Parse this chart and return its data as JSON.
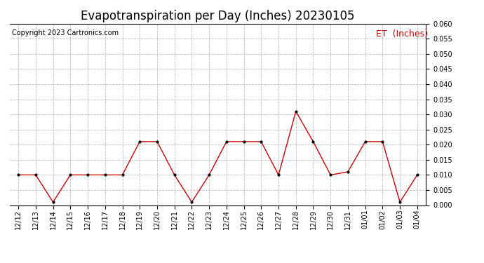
{
  "title": "Evapotranspiration per Day (Inches) 20230105",
  "copyright": "Copyright 2023 Cartronics.com",
  "legend_label": "ET  (Inches)",
  "x_labels": [
    "12/12",
    "12/13",
    "12/14",
    "12/15",
    "12/16",
    "12/17",
    "12/18",
    "12/19",
    "12/20",
    "12/21",
    "12/22",
    "12/23",
    "12/24",
    "12/25",
    "12/26",
    "12/27",
    "12/28",
    "12/29",
    "12/30",
    "12/31",
    "01/01",
    "01/02",
    "01/03",
    "01/04"
  ],
  "y_values": [
    0.01,
    0.01,
    0.001,
    0.01,
    0.01,
    0.01,
    0.01,
    0.021,
    0.021,
    0.01,
    0.001,
    0.01,
    0.021,
    0.021,
    0.021,
    0.01,
    0.031,
    0.021,
    0.01,
    0.011,
    0.021,
    0.021,
    0.001,
    0.01
  ],
  "line_color": "#cc0000",
  "marker_color": "#000000",
  "ylim_min": 0.0,
  "ylim_max": 0.06,
  "yticks": [
    0.0,
    0.005,
    0.01,
    0.015,
    0.02,
    0.025,
    0.03,
    0.035,
    0.04,
    0.045,
    0.05,
    0.055,
    0.06
  ],
  "grid_color": "#bbbbbb",
  "grid_style": "--",
  "bg_color": "#ffffff",
  "title_fontsize": 12,
  "copyright_fontsize": 7,
  "legend_fontsize": 9,
  "tick_fontsize": 7
}
